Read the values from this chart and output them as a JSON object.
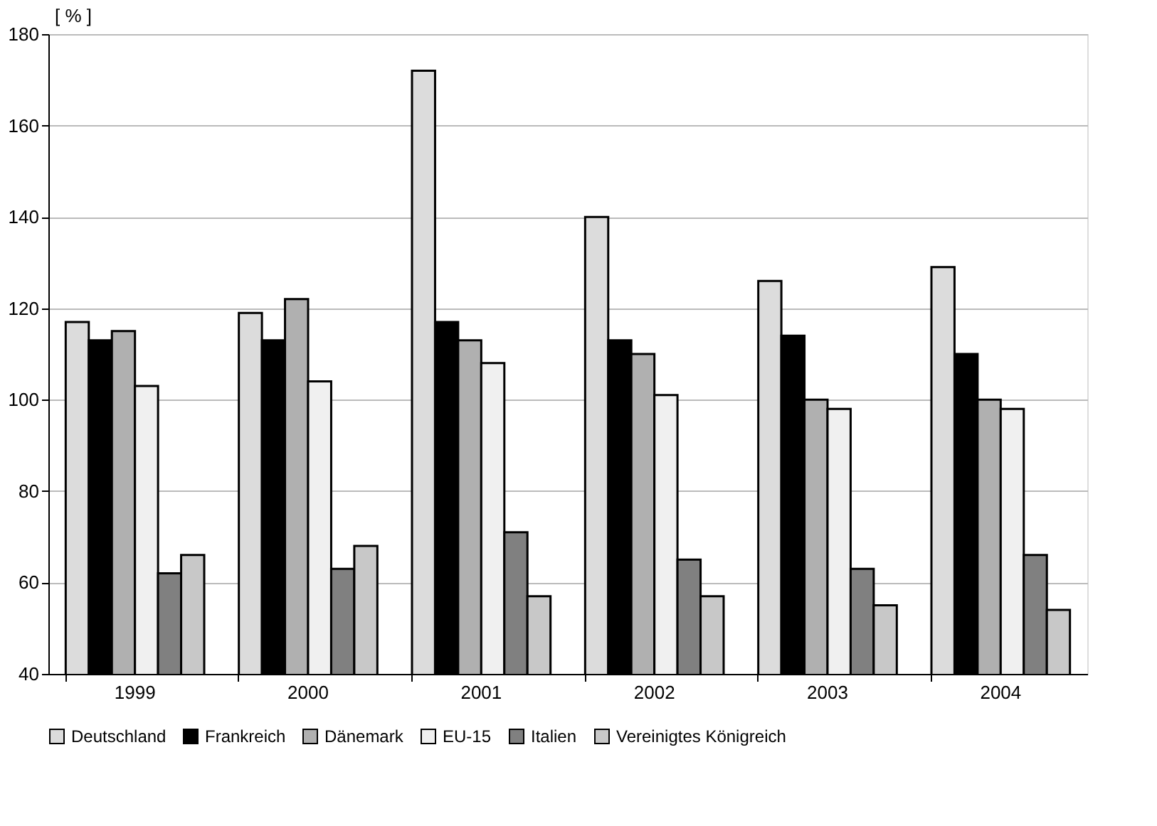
{
  "chart_data": {
    "type": "bar",
    "ylabel": "[ % ]",
    "categories": [
      "1999",
      "2000",
      "2001",
      "2002",
      "2003",
      "2004"
    ],
    "series": [
      {
        "name": "Deutschland",
        "color": "#dcdcdc",
        "values": [
          117,
          119,
          172,
          140,
          126,
          129
        ]
      },
      {
        "name": "Frankreich",
        "color": "#000000",
        "values": [
          113,
          113,
          117,
          113,
          114,
          110
        ]
      },
      {
        "name": "Dänemark",
        "color": "#b0b0b0",
        "values": [
          115,
          122,
          113,
          110,
          100,
          100
        ]
      },
      {
        "name": "EU-15",
        "color": "#f0f0f0",
        "values": [
          103,
          104,
          108,
          101,
          98,
          98
        ]
      },
      {
        "name": "Italien",
        "color": "#808080",
        "values": [
          62,
          63,
          71,
          65,
          63,
          66
        ]
      },
      {
        "name": "Vereinigtes Königreich",
        "color": "#c8c8c8",
        "values": [
          66,
          68,
          57,
          57,
          55,
          54
        ]
      }
    ],
    "ylim": [
      40,
      180
    ],
    "yticks": [
      40,
      60,
      80,
      100,
      120,
      140,
      160,
      180
    ],
    "grid": "y",
    "legend": "bottom"
  }
}
